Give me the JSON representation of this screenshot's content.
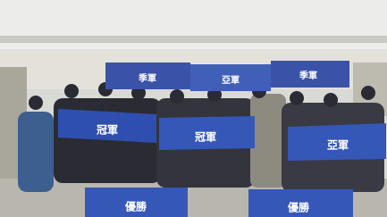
{
  "signs": [
    {
      "label": "季軍"
    },
    {
      "label": "亞軍"
    },
    {
      "label": "季軍"
    },
    {
      "label": "冠軍"
    },
    {
      "label": "冠軍"
    },
    {
      "label": "亞軍"
    },
    {
      "label": "優勝"
    },
    {
      "label": "優勝"
    }
  ]
}
